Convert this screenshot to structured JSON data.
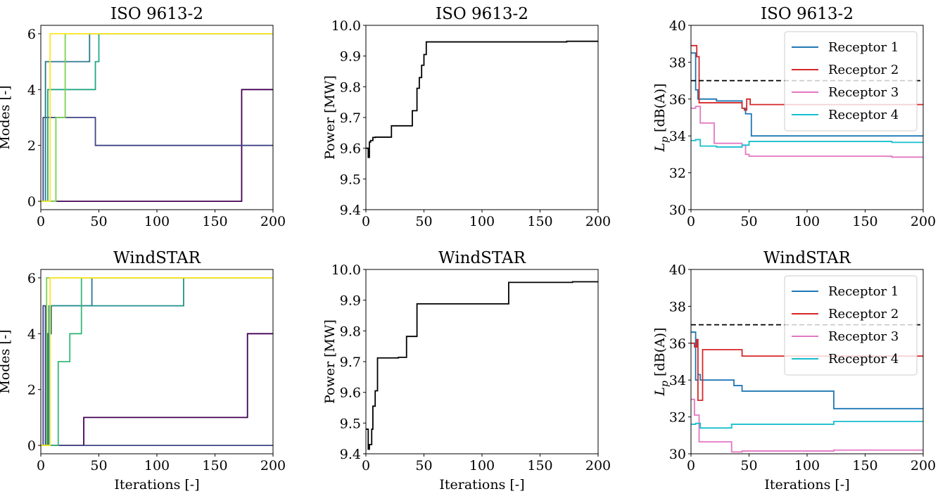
{
  "chart_data": [
    {
      "type": "line",
      "panel": "modes-iso",
      "title": "ISO 9613-2",
      "xlabel": "",
      "ylabel": "Modes [-]",
      "xlim": [
        0,
        200
      ],
      "ylim": [
        -0.3,
        6.3
      ],
      "xticks": [
        0,
        50,
        100,
        150,
        200
      ],
      "yticks": [
        0,
        2,
        4,
        6
      ],
      "series": [
        {
          "color": "#440154",
          "x": [
            0,
            173,
            173,
            200
          ],
          "y": [
            0,
            0,
            4,
            4
          ]
        },
        {
          "color": "#414487",
          "x": [
            0,
            2,
            2,
            47,
            47,
            200
          ],
          "y": [
            0,
            0,
            3,
            3,
            2,
            2
          ]
        },
        {
          "color": "#2a788e",
          "x": [
            0,
            4,
            4,
            42,
            42,
            200
          ],
          "y": [
            0,
            0,
            5,
            5,
            6,
            6
          ]
        },
        {
          "color": "#22a884",
          "x": [
            0,
            6,
            6,
            47,
            47,
            50,
            50,
            52,
            52,
            200
          ],
          "y": [
            0,
            0,
            4,
            4,
            5,
            5,
            6,
            6,
            6,
            6
          ]
        },
        {
          "color": "#7ad151",
          "x": [
            0,
            13,
            13,
            21,
            21,
            200
          ],
          "y": [
            0,
            0,
            3,
            3,
            6,
            6
          ]
        },
        {
          "color": "#fde725",
          "x": [
            0,
            8,
            8,
            200
          ],
          "y": [
            0,
            0,
            6,
            6
          ]
        }
      ]
    },
    {
      "type": "line",
      "panel": "power-iso",
      "title": "ISO 9613-2",
      "xlabel": "",
      "ylabel": "Power [MW]",
      "xlim": [
        0,
        200
      ],
      "ylim": [
        9.4,
        10.0
      ],
      "xticks": [
        0,
        50,
        100,
        150,
        200
      ],
      "yticks": [
        9.4,
        9.5,
        9.6,
        9.7,
        9.8,
        9.9,
        10.0
      ],
      "series": [
        {
          "color": "#000000",
          "x": [
            0,
            2,
            2,
            3,
            3,
            4,
            4,
            6,
            6,
            8,
            8,
            22,
            22,
            40,
            40,
            44,
            44,
            46,
            46,
            48,
            48,
            50,
            50,
            52,
            52,
            173,
            173,
            200
          ],
          "y": [
            9.6,
            9.6,
            9.57,
            9.57,
            9.62,
            9.62,
            9.625,
            9.625,
            9.635,
            9.635,
            9.636,
            9.636,
            9.673,
            9.673,
            9.722,
            9.722,
            9.795,
            9.795,
            9.83,
            9.83,
            9.87,
            9.87,
            9.905,
            9.905,
            9.946,
            9.946,
            9.948,
            9.948
          ]
        }
      ]
    },
    {
      "type": "line",
      "panel": "noise-iso",
      "title": "ISO 9613-2",
      "xlabel": "",
      "ylabel": "L_p [dB(A)]",
      "ylabel_main": "L",
      "ylabel_sub": "p",
      "ylabel_rest": " [dB(A)]",
      "xlim": [
        0,
        200
      ],
      "ylim": [
        30,
        40
      ],
      "xticks": [
        0,
        50,
        100,
        150,
        200
      ],
      "yticks": [
        30,
        32,
        34,
        36,
        38,
        40
      ],
      "limit_line": 37,
      "legend_position": "top-right",
      "series": [
        {
          "name": "Receptor 1",
          "color": "#1f77b4",
          "x": [
            0,
            4,
            4,
            6,
            6,
            22,
            22,
            44,
            44,
            47,
            47,
            52,
            52,
            200
          ],
          "y": [
            38.5,
            38.5,
            36.5,
            36.5,
            36.0,
            36.0,
            35.9,
            35.9,
            35.5,
            35.5,
            35.2,
            35.2,
            34.0,
            34.0
          ]
        },
        {
          "name": "Receptor 2",
          "color": "#d62728",
          "x": [
            0,
            5,
            5,
            7,
            7,
            22,
            22,
            44,
            44,
            46,
            46,
            48,
            48,
            51,
            51,
            200
          ],
          "y": [
            38.9,
            38.9,
            38.3,
            38.3,
            35.8,
            35.8,
            35.8,
            35.8,
            35.5,
            35.5,
            35.4,
            35.4,
            36.0,
            36.0,
            35.7,
            35.7
          ]
        },
        {
          "name": "Receptor 3",
          "color": "#e377c2",
          "x": [
            0,
            4,
            4,
            8,
            8,
            20,
            20,
            44,
            44,
            47,
            47,
            50,
            50,
            173,
            173,
            200
          ],
          "y": [
            35.5,
            35.5,
            35.6,
            35.6,
            34.7,
            34.7,
            33.6,
            33.6,
            33.5,
            33.5,
            33.0,
            33.0,
            32.9,
            32.9,
            32.85,
            32.85
          ]
        },
        {
          "name": "Receptor 4",
          "color": "#17becf",
          "x": [
            0,
            4,
            4,
            8,
            8,
            22,
            22,
            44,
            44,
            50,
            50,
            173,
            173,
            200
          ],
          "y": [
            33.75,
            33.75,
            33.8,
            33.8,
            33.45,
            33.45,
            33.4,
            33.4,
            33.5,
            33.5,
            33.7,
            33.7,
            33.65,
            33.65
          ]
        }
      ]
    },
    {
      "type": "line",
      "panel": "modes-windstar",
      "title": "WindSTAR",
      "xlabel": "Iterations [-]",
      "ylabel": "Modes [-]",
      "xlim": [
        0,
        200
      ],
      "ylim": [
        -0.3,
        6.3
      ],
      "xticks": [
        0,
        50,
        100,
        150,
        200
      ],
      "yticks": [
        0,
        2,
        4,
        6
      ],
      "series": [
        {
          "color": "#440154",
          "x": [
            0,
            37,
            37,
            178,
            178,
            200
          ],
          "y": [
            0,
            0,
            1,
            1,
            4,
            4
          ]
        },
        {
          "color": "#414487",
          "x": [
            0,
            2,
            2,
            4,
            4,
            200
          ],
          "y": [
            0,
            0,
            5,
            5,
            0,
            0
          ]
        },
        {
          "color": "#2a788e",
          "x": [
            0,
            6,
            6,
            9,
            9,
            44,
            44,
            200
          ],
          "y": [
            0,
            0,
            4,
            4,
            5,
            5,
            6,
            6
          ]
        },
        {
          "color": "#21918c",
          "x": [
            0,
            7,
            7,
            9,
            9,
            123,
            123,
            200
          ],
          "y": [
            0,
            0,
            5,
            5,
            5,
            5,
            6,
            6
          ]
        },
        {
          "color": "#35b779",
          "x": [
            0,
            15,
            15,
            25,
            25,
            35,
            35,
            200
          ],
          "y": [
            0,
            0,
            3,
            3,
            4,
            4,
            6,
            6
          ]
        },
        {
          "color": "#7ad151",
          "x": [
            0,
            5,
            5,
            200
          ],
          "y": [
            0,
            0,
            6,
            6
          ]
        },
        {
          "color": "#fde725",
          "x": [
            0,
            8,
            8,
            200
          ],
          "y": [
            0,
            0,
            6,
            6
          ]
        }
      ]
    },
    {
      "type": "line",
      "panel": "power-windstar",
      "title": "WindSTAR",
      "xlabel": "Iterations [-]",
      "ylabel": "Power [MW]",
      "xlim": [
        0,
        200
      ],
      "ylim": [
        9.4,
        10.0
      ],
      "xticks": [
        0,
        50,
        100,
        150,
        200
      ],
      "yticks": [
        9.4,
        9.5,
        9.6,
        9.7,
        9.8,
        9.9,
        10.0
      ],
      "series": [
        {
          "color": "#000000",
          "x": [
            0,
            2,
            2,
            3,
            3,
            5,
            5,
            6,
            6,
            8,
            8,
            10,
            10,
            28,
            28,
            35,
            35,
            44,
            44,
            123,
            123,
            178,
            178,
            200
          ],
          "y": [
            9.48,
            9.48,
            9.415,
            9.415,
            9.43,
            9.43,
            9.48,
            9.48,
            9.555,
            9.555,
            9.605,
            9.605,
            9.712,
            9.712,
            9.714,
            9.714,
            9.782,
            9.782,
            9.888,
            9.888,
            9.958,
            9.958,
            9.96,
            9.96
          ]
        }
      ]
    },
    {
      "type": "line",
      "panel": "noise-windstar",
      "title": "WindSTAR",
      "xlabel": "Iterations [-]",
      "ylabel": "L_p [dB(A)]",
      "ylabel_main": "L",
      "ylabel_sub": "p",
      "ylabel_rest": " [dB(A)]",
      "xlim": [
        0,
        200
      ],
      "ylim": [
        30,
        40
      ],
      "xticks": [
        0,
        50,
        100,
        150,
        200
      ],
      "yticks": [
        30,
        32,
        34,
        36,
        38,
        40
      ],
      "limit_line": 37,
      "legend_position": "top-right",
      "series": [
        {
          "name": "Receptor 1",
          "color": "#1f77b4",
          "x": [
            0,
            4,
            4,
            6,
            6,
            8,
            8,
            37,
            37,
            44,
            44,
            123,
            123,
            200
          ],
          "y": [
            36.6,
            36.6,
            34.0,
            34.0,
            34.3,
            34.3,
            34.0,
            34.0,
            33.7,
            33.7,
            33.4,
            33.4,
            32.45,
            32.45
          ]
        },
        {
          "name": "Receptor 2",
          "color": "#d62728",
          "x": [
            0,
            3,
            3,
            5,
            5,
            6,
            6,
            10,
            10,
            44,
            44,
            200
          ],
          "y": [
            36.0,
            36.0,
            35.8,
            35.8,
            36.2,
            36.2,
            32.9,
            32.9,
            35.65,
            35.65,
            35.3,
            35.3
          ]
        },
        {
          "name": "Receptor 3",
          "color": "#e377c2",
          "x": [
            0,
            3,
            3,
            7,
            7,
            35,
            35,
            44,
            44,
            123,
            123,
            200
          ],
          "y": [
            32.95,
            32.95,
            32.1,
            32.1,
            30.65,
            30.65,
            30.1,
            30.1,
            30.15,
            30.15,
            30.2,
            30.2
          ]
        },
        {
          "name": "Receptor 4",
          "color": "#17becf",
          "x": [
            0,
            4,
            4,
            8,
            8,
            35,
            35,
            123,
            123,
            200
          ],
          "y": [
            31.6,
            31.6,
            31.65,
            31.65,
            31.4,
            31.4,
            31.6,
            31.6,
            31.75,
            31.75
          ]
        }
      ]
    }
  ]
}
